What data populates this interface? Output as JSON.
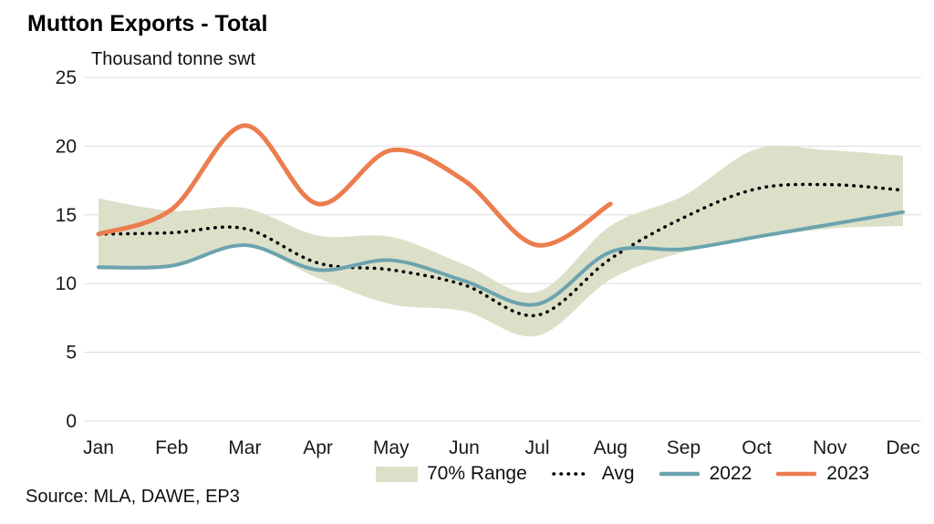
{
  "title": "Mutton Exports - Total",
  "subtitle": "Thousand tonne swt",
  "source": "Source: MLA, DAWE, EP3",
  "legend": [
    {
      "label": "70% Range",
      "type": "band",
      "color": "#DCE0C9"
    },
    {
      "label": "Avg",
      "type": "dotted",
      "color": "#000000"
    },
    {
      "label": "2022",
      "type": "solid",
      "color": "#6BA3AE"
    },
    {
      "label": "2023",
      "type": "solid",
      "color": "#EB7D4F"
    }
  ],
  "chart_data": {
    "type": "line",
    "title": "Mutton Exports - Total",
    "subtitle": "Thousand tonne swt",
    "categories": [
      "Jan",
      "Feb",
      "Mar",
      "Apr",
      "May",
      "Jun",
      "Jul",
      "Aug",
      "Sep",
      "Oct",
      "Nov",
      "Dec"
    ],
    "ylim": [
      0,
      25
    ],
    "yticks": [
      0,
      5,
      10,
      15,
      20,
      25
    ],
    "grid": true,
    "legend_position": "bottom",
    "band": {
      "name": "70% Range",
      "color": "#DCE0C9",
      "upper": [
        16.2,
        15.3,
        15.5,
        13.5,
        13.4,
        11.4,
        9.4,
        14.2,
        16.4,
        19.8,
        19.7,
        19.3
      ],
      "lower": [
        11.0,
        11.2,
        12.7,
        10.4,
        8.5,
        8.0,
        6.2,
        10.3,
        12.3,
        13.3,
        14.0,
        14.2
      ]
    },
    "series": [
      {
        "name": "Avg",
        "style": "dotted",
        "color": "#000000",
        "values": [
          13.6,
          13.7,
          14.0,
          11.5,
          11.0,
          9.9,
          7.7,
          11.8,
          14.8,
          16.9,
          17.2,
          16.8
        ]
      },
      {
        "name": "2022",
        "style": "solid",
        "color": "#6BA3AE",
        "values": [
          11.2,
          11.3,
          12.8,
          11.0,
          11.7,
          10.2,
          8.5,
          12.3,
          12.5,
          13.4,
          14.3,
          15.2
        ]
      },
      {
        "name": "2023",
        "style": "solid",
        "color": "#EB7D4F",
        "values": [
          13.6,
          15.4,
          21.5,
          15.8,
          19.7,
          17.5,
          12.8,
          15.8,
          null,
          null,
          null,
          null
        ]
      }
    ]
  }
}
